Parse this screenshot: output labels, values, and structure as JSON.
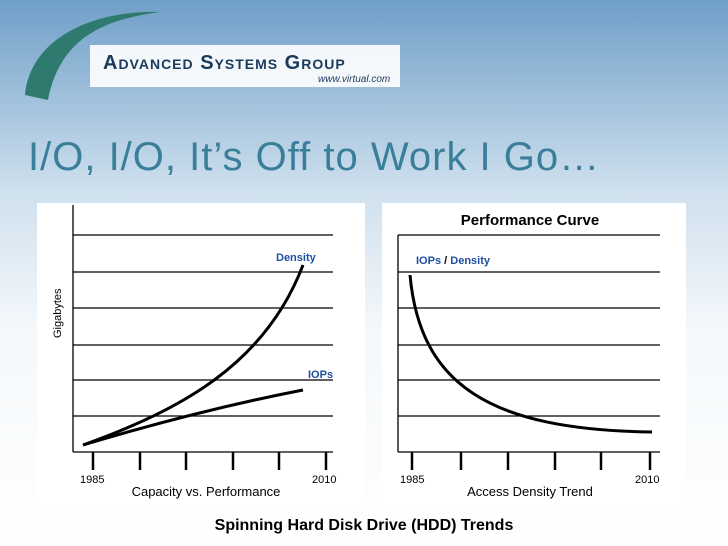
{
  "header": {
    "company": "Advanced Systems Group",
    "url": "www.virtual.com",
    "title": "I/O, I/O, It’s Off to Work I Go…"
  },
  "left_panel": {
    "y_label": "Gigabytes",
    "curve_labels": [
      "Density",
      "IOPs"
    ],
    "x_start": "1985",
    "x_end": "2010",
    "caption": "Capacity vs. Performance"
  },
  "right_panel": {
    "title": "Performance Curve",
    "curve_label": [
      "IOPs",
      "/",
      "Density"
    ],
    "x_start": "1985",
    "x_end": "2010",
    "caption": "Access Density Trend"
  },
  "footer": "Spinning Hard Disk Drive (HDD) Trends"
}
